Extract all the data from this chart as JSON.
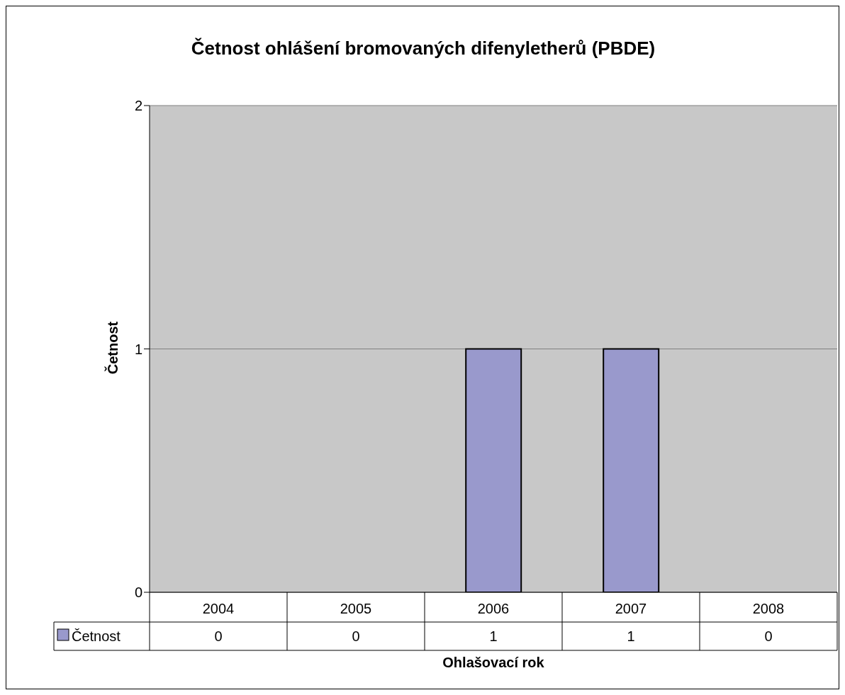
{
  "chart_data": {
    "type": "bar",
    "title": "Četnost ohlášení bromovaných difenyletherů (PBDE)",
    "xlabel": "Ohlašovací rok",
    "ylabel": "Četnost",
    "categories": [
      "2004",
      "2005",
      "2006",
      "2007",
      "2008"
    ],
    "series": [
      {
        "name": "Četnost",
        "color": "#9999cc",
        "values": [
          0,
          0,
          1,
          1,
          0
        ]
      }
    ],
    "ylim": [
      0,
      2
    ],
    "yticks": [
      0,
      1,
      2
    ],
    "grid": "y",
    "legend": "bottom",
    "data_labels": true
  }
}
